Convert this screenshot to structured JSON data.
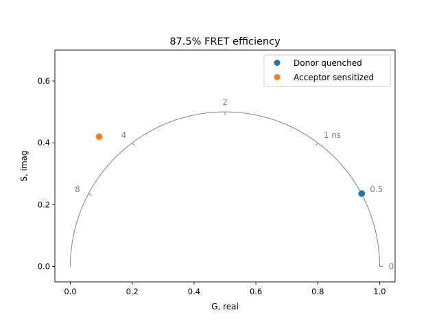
{
  "chart_data": {
    "type": "scatter",
    "title": "87.5% FRET efficiency",
    "xlabel": "G, real",
    "ylabel": "S, imag",
    "xlim": [
      -0.05,
      1.05
    ],
    "ylim": [
      -0.05,
      0.7
    ],
    "xticks": [
      0.0,
      0.2,
      0.4,
      0.6,
      0.8,
      1.0
    ],
    "xtick_labels": [
      "0.0",
      "0.2",
      "0.4",
      "0.6",
      "0.8",
      "1.0"
    ],
    "yticks": [
      0.0,
      0.2,
      0.4,
      0.6
    ],
    "ytick_labels": [
      "0.0",
      "0.2",
      "0.4",
      "0.6"
    ],
    "grid": false,
    "legend_position": "top-right",
    "series": [
      {
        "name": "Donor quenched",
        "color": "#1f77b4",
        "x": [
          0.942
        ],
        "y": [
          0.236
        ]
      },
      {
        "name": "Acceptor sensitized",
        "color": "#ff7f0e",
        "x": [
          0.093
        ],
        "y": [
          0.42
        ]
      }
    ],
    "universal_semicircle": {
      "color": "#808080",
      "lifetimes": [
        0,
        0.5,
        1,
        2,
        4,
        8
      ],
      "lifetime_labels": [
        "0",
        "0.5",
        "1 ns",
        "2",
        "4",
        "8"
      ]
    }
  }
}
